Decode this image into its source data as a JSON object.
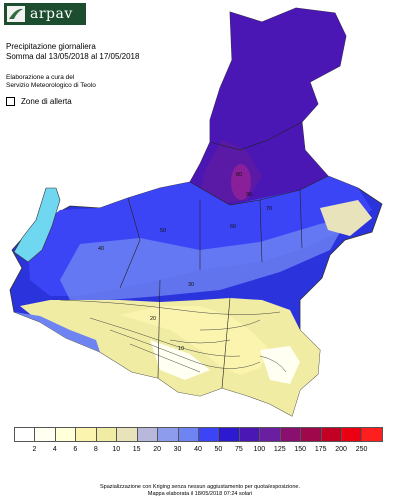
{
  "header": {
    "logo_text": "arpav",
    "title_line1": "Precipitazione giornaliera",
    "title_line2": "Somma dal 13/05/2018 al 17/05/2018",
    "processing_line1": "Elaborazione a cura del",
    "processing_line2": "Servizio Meteorologico di Teolo",
    "alert_label": "Zone di allerta"
  },
  "colors": {
    "brand": "#1c4d2e",
    "lake": "#6fd7f0"
  },
  "map": {
    "contour_labels": [
      "40",
      "50",
      "60",
      "70",
      "80",
      "90",
      "30",
      "20",
      "10"
    ]
  },
  "legend": {
    "ticks": [
      "2",
      "4",
      "6",
      "8",
      "10",
      "15",
      "20",
      "30",
      "40",
      "50",
      "75",
      "100",
      "125",
      "150",
      "175",
      "200",
      "250"
    ],
    "colors": [
      "#ffffff",
      "#fffff2",
      "#ffffd9",
      "#fbf4ae",
      "#f0eca3",
      "#e8e3ba",
      "#b7b8dc",
      "#8e9cee",
      "#6f84f3",
      "#3c45f6",
      "#2d1ad0",
      "#4a16b4",
      "#6a1fa0",
      "#8a1070",
      "#a0084c",
      "#c20024",
      "#ea0012",
      "#ff1f1f"
    ]
  },
  "footer": {
    "line1": "Spazializzazione con Kriging senza nessun aggiustamento per quota/esposizione.",
    "line2": "Mappa elaborata il 18/05/2018 07:24 solari"
  }
}
